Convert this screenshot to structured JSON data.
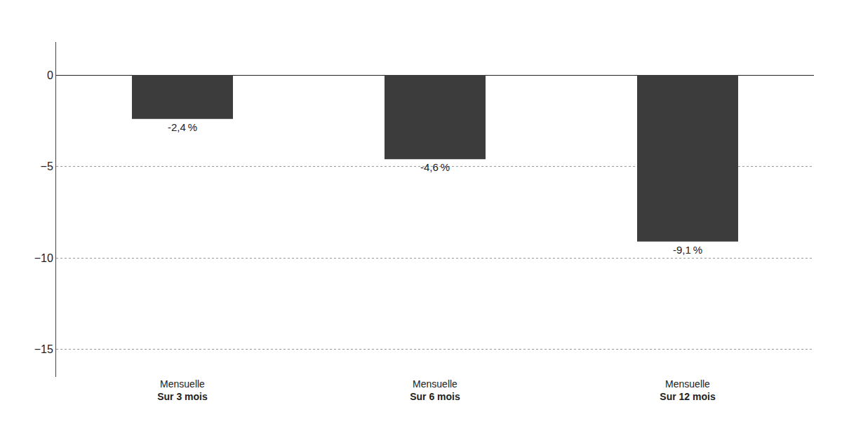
{
  "chart_data": {
    "type": "bar",
    "categories": [
      "Mensuelle\nSur 3 mois",
      "Mensuelle\nSur 6 mois",
      "Mensuelle\nSur 12 mois"
    ],
    "values": [
      -2.4,
      -4.6,
      -9.1
    ],
    "value_labels": [
      "-2,4 %",
      "-4,6 %",
      "-9,1 %"
    ],
    "data_labels": true,
    "color": "#3c3c3c",
    "ylim": [
      -16.5,
      1.8
    ],
    "yticks": [
      0,
      {
        "value": -5,
        "label": "−5"
      },
      {
        "value": -10,
        "label": "−10"
      },
      {
        "value": -15,
        "label": "−15"
      }
    ],
    "grid": true
  }
}
